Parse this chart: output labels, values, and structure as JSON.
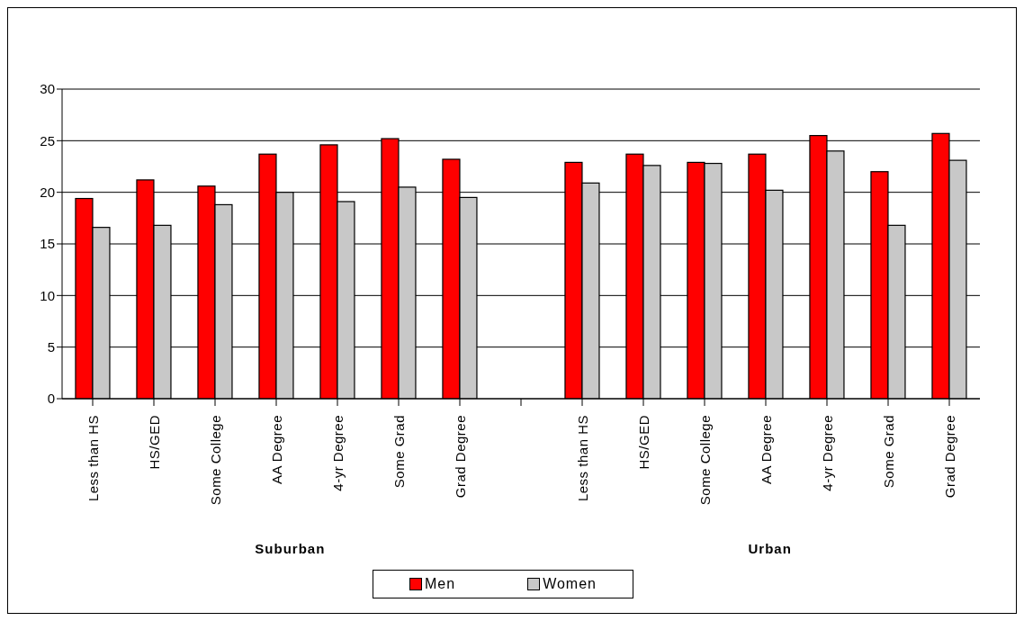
{
  "chart_data": {
    "type": "bar",
    "categories": [
      "Less than HS",
      "HS/GED",
      "Some College",
      "AA Degree",
      "4-yr Degree",
      "Some Grad",
      "Grad Degree",
      null,
      "Less than HS",
      "HS/GED",
      "Some College",
      "AA Degree",
      "4-yr Degree",
      "Some Grad",
      "Grad Degree"
    ],
    "series": [
      {
        "name": "Men",
        "color": "#ff0000",
        "values": [
          19.4,
          21.2,
          20.6,
          23.7,
          24.6,
          25.2,
          23.2,
          null,
          22.9,
          23.7,
          22.9,
          23.7,
          25.5,
          22.0,
          25.7
        ]
      },
      {
        "name": "Women",
        "color": "#c8c8c8",
        "values": [
          16.6,
          16.8,
          18.8,
          20.0,
          19.1,
          20.5,
          19.5,
          null,
          20.9,
          22.6,
          22.8,
          20.2,
          24.0,
          16.8,
          23.1
        ]
      }
    ],
    "annotations": [
      "Suburban",
      "Urban"
    ],
    "ylim": [
      0,
      30
    ],
    "yticks": [
      0,
      5,
      10,
      15,
      20,
      25,
      30
    ],
    "grid": "y",
    "legend": "bottom"
  }
}
